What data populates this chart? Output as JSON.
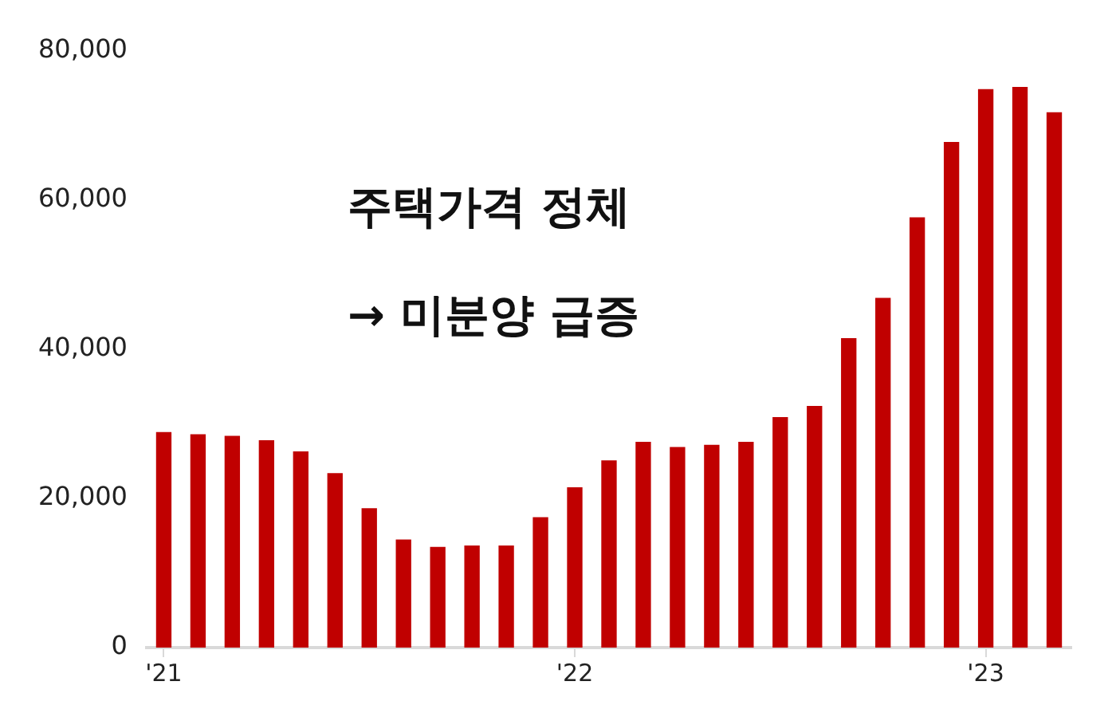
{
  "chart_data": {
    "type": "bar",
    "categories": [
      "'21",
      null,
      null,
      null,
      null,
      null,
      null,
      null,
      null,
      null,
      null,
      null,
      "'22",
      null,
      null,
      null,
      null,
      null,
      null,
      null,
      null,
      null,
      null,
      null,
      "'23",
      null,
      null
    ],
    "values": [
      28900,
      28600,
      28400,
      27800,
      26300,
      23400,
      18700,
      14500,
      13500,
      13700,
      13700,
      17500,
      21500,
      25100,
      27600,
      26900,
      27200,
      27600,
      30900,
      32400,
      41500,
      46900,
      57700,
      67800,
      74900,
      75200,
      71800
    ],
    "color": "#c00000",
    "ylim": [
      0,
      80000
    ],
    "yticks": [
      0,
      {
        "value": 20000,
        "label": "20,000"
      },
      {
        "value": 40000,
        "label": "40,000"
      },
      {
        "value": 60000,
        "label": "60,000"
      },
      {
        "value": 80000,
        "label": "80,000"
      }
    ],
    "grid": false,
    "legend": false,
    "annotations": [
      "주택가격 정체",
      "→ 미분양 급증"
    ]
  }
}
